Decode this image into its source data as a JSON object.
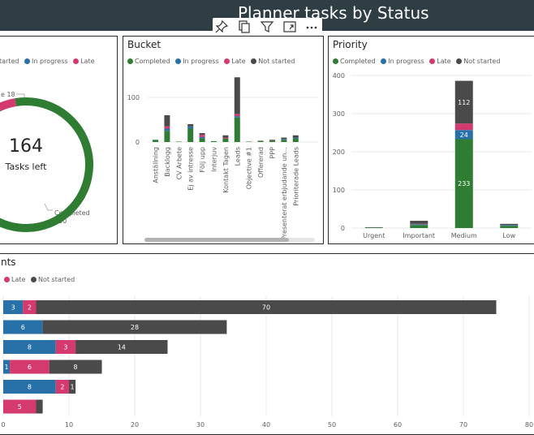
{
  "header": {
    "title": "Planner tasks by Status"
  },
  "toolbar": {
    "icons": [
      "pin-icon",
      "copy-icon",
      "filter-icon",
      "focus-mode-icon",
      "more-options-icon"
    ]
  },
  "colors": {
    "completed": "#2e7d32",
    "in_progress": "#2771a8",
    "late": "#d43a6e",
    "not_started": "#4a4a4a",
    "header_bg": "#2f3d45"
  },
  "donut_panel": {
    "legend": [
      "tarted",
      "In progress",
      "Late"
    ],
    "center_value": "164",
    "center_label": "Tasks left",
    "late_callout": "e 18",
    "completed_callout_label": "Completed",
    "completed_callout_value": "250"
  },
  "bucket_panel": {
    "title": "Bucket",
    "legend": [
      "Completed",
      "In progress",
      "Late",
      "Not started"
    ]
  },
  "priority_panel": {
    "title": "Priority",
    "legend": [
      "Completed",
      "In progress",
      "Late",
      "Not started"
    ]
  },
  "bottom_panel": {
    "title": "nts",
    "legend": [
      "Late",
      "Not started"
    ]
  },
  "chart_data": [
    {
      "type": "pie",
      "donut": true,
      "slices": [
        {
          "name": "Completed",
          "value": 250
        },
        {
          "name": "Late",
          "value": 18
        },
        {
          "name": "In progress",
          "value": 12
        },
        {
          "name": "Not started",
          "value": 134
        }
      ]
    },
    {
      "type": "bar",
      "stacked": true,
      "title": "Bucket",
      "categories": [
        "Anställning",
        "Backlogg",
        "CV Arbete",
        "Ej av intresse",
        "Följ upp",
        "Interjuv",
        "Kontakt Tagen",
        "Leads",
        "Objective #1",
        "Offererad",
        "PPP",
        "Presenterat erbjudande un...",
        "Prioriterade Leads"
      ],
      "yticks": [
        0,
        100
      ],
      "series": [
        {
          "name": "Completed",
          "values": [
            5,
            25,
            1,
            30,
            8,
            2,
            8,
            55,
            1,
            2,
            3,
            5,
            8
          ]
        },
        {
          "name": "In progress",
          "values": [
            0,
            5,
            0,
            5,
            3,
            0,
            0,
            3,
            0,
            0,
            0,
            2,
            2
          ]
        },
        {
          "name": "Late",
          "values": [
            0,
            5,
            0,
            0,
            5,
            0,
            2,
            5,
            0,
            0,
            0,
            0,
            0
          ]
        },
        {
          "name": "Not started",
          "values": [
            0,
            25,
            0,
            5,
            4,
            0,
            5,
            82,
            0,
            1,
            2,
            3,
            5
          ]
        }
      ]
    },
    {
      "type": "bar",
      "stacked": true,
      "title": "Priority",
      "categories": [
        "Urgent",
        "Important",
        "Medium",
        "Low"
      ],
      "yticks": [
        0,
        100,
        200,
        300,
        400
      ],
      "ylim": [
        0,
        420
      ],
      "series": [
        {
          "name": "Completed",
          "values": [
            1,
            8,
            233,
            6
          ]
        },
        {
          "name": "In progress",
          "values": [
            0,
            2,
            24,
            2
          ]
        },
        {
          "name": "Late",
          "values": [
            0,
            1,
            17,
            0
          ]
        },
        {
          "name": "Not started",
          "values": [
            1,
            8,
            112,
            3
          ]
        }
      ],
      "data_labels": {
        "Medium": {
          "Completed": "233",
          "In progress": "24",
          "Not started": "112"
        }
      }
    },
    {
      "type": "bar",
      "orientation": "horizontal",
      "stacked": true,
      "xticks": [
        0,
        10,
        20,
        30,
        40,
        50,
        60,
        70,
        80
      ],
      "xlim": [
        0,
        80
      ],
      "rows": [
        [
          {
            "series": "In progress",
            "value": 3,
            "label": "3"
          },
          {
            "series": "Late",
            "value": 2,
            "label": "2"
          },
          {
            "series": "Not started",
            "value": 70,
            "label": "70"
          }
        ],
        [
          {
            "series": "In progress",
            "value": 6,
            "label": "6"
          },
          {
            "series": "Not started",
            "value": 28,
            "label": "28"
          }
        ],
        [
          {
            "series": "In progress",
            "value": 8,
            "label": "8"
          },
          {
            "series": "Late",
            "value": 3,
            "label": "3"
          },
          {
            "series": "Not started",
            "value": 14,
            "label": "14"
          }
        ],
        [
          {
            "series": "In progress",
            "value": 1,
            "label": "1"
          },
          {
            "series": "Late",
            "value": 6,
            "label": "6"
          },
          {
            "series": "Not started",
            "value": 8,
            "label": "8"
          }
        ],
        [
          {
            "series": "In progress",
            "value": 8,
            "label": "8"
          },
          {
            "series": "Late",
            "value": 2,
            "label": "2"
          },
          {
            "series": "Not started",
            "value": 1,
            "label": "1"
          }
        ],
        [
          {
            "series": "Late",
            "value": 5,
            "label": "5"
          },
          {
            "series": "Not started",
            "value": 1,
            "label": ""
          }
        ]
      ]
    }
  ]
}
